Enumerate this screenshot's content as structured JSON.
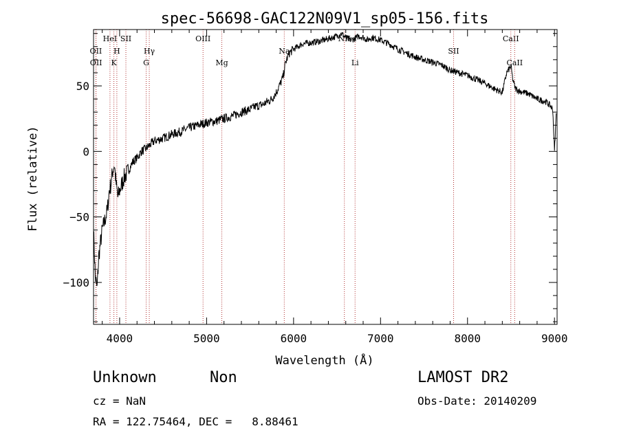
{
  "chart_data": {
    "type": "line",
    "title": "spec-56698-GAC122N09V1_sp05-156.fits",
    "xlabel": "Wavelength (Å)",
    "ylabel": "Flux (relative)",
    "xlim": [
      3700,
      9030
    ],
    "ylim": [
      -132,
      93
    ],
    "x_ticks": [
      4000,
      5000,
      6000,
      7000,
      8000,
      9000
    ],
    "y_ticks": [
      -100,
      -50,
      0,
      50
    ],
    "x_tick_labels": [
      "4000",
      "5000",
      "6000",
      "7000",
      "8000",
      "9000"
    ],
    "y_tick_labels": [
      "−100",
      "−50",
      "0",
      "50"
    ],
    "grid": false,
    "line_color": "#000000",
    "marker_color": "#b03030",
    "spectrum": {
      "x": [
        3700,
        3720,
        3740,
        3760,
        3780,
        3800,
        3820,
        3840,
        3860,
        3880,
        3900,
        3920,
        3940,
        3960,
        3980,
        4000,
        4050,
        4100,
        4150,
        4200,
        4250,
        4300,
        4350,
        4400,
        4500,
        4600,
        4700,
        4800,
        4900,
        5000,
        5100,
        5200,
        5300,
        5400,
        5500,
        5550,
        5600,
        5650,
        5700,
        5750,
        5800,
        5850,
        5880,
        5900,
        5920,
        5950,
        6000,
        6050,
        6100,
        6200,
        6300,
        6400,
        6500,
        6550,
        6600,
        6650,
        6700,
        6750,
        6800,
        6850,
        6900,
        7000,
        7100,
        7200,
        7300,
        7400,
        7500,
        7600,
        7700,
        7800,
        7900,
        8000,
        8100,
        8200,
        8300,
        8400,
        8450,
        8500,
        8520,
        8550,
        8600,
        8700,
        8800,
        8900,
        8950,
        8980,
        9000,
        9020
      ],
      "y": [
        -60,
        -95,
        -105,
        -80,
        -70,
        -60,
        -55,
        -50,
        -45,
        -30,
        -25,
        -15,
        -10,
        -25,
        -35,
        -30,
        -20,
        -15,
        -8,
        -5,
        0,
        2,
        5,
        8,
        10,
        13,
        15,
        18,
        20,
        22,
        23,
        25,
        27,
        30,
        32,
        34,
        35,
        36,
        38,
        40,
        45,
        52,
        57,
        65,
        70,
        75,
        78,
        80,
        82,
        83,
        84,
        86,
        88,
        90,
        87,
        85,
        86,
        88,
        87,
        85,
        87,
        85,
        82,
        78,
        75,
        72,
        70,
        68,
        66,
        62,
        60,
        58,
        55,
        52,
        48,
        45,
        60,
        65,
        55,
        48,
        46,
        44,
        40,
        38,
        35,
        32,
        0,
        28
      ]
    },
    "spectral_lines": [
      {
        "name": "OII",
        "x": 3727,
        "label_row": 1
      },
      {
        "name": "OII",
        "x": 3729,
        "label_row": 2
      },
      {
        "name": "HeI",
        "x": 3889,
        "label_row": 0
      },
      {
        "name": "H",
        "x": 3968,
        "label_row": 1
      },
      {
        "name": "K",
        "x": 3934,
        "label_row": 2
      },
      {
        "name": "SII",
        "x": 4072,
        "label_row": 0
      },
      {
        "name": "Hγ",
        "x": 4341,
        "label_row": 1
      },
      {
        "name": "G",
        "x": 4305,
        "label_row": 2
      },
      {
        "name": "OIII",
        "x": 4959,
        "label_row": 0
      },
      {
        "name": "Mg",
        "x": 5175,
        "label_row": 2
      },
      {
        "name": "Na",
        "x": 5893,
        "label_row": 1
      },
      {
        "name": "NII",
        "x": 6584,
        "label_row": 0
      },
      {
        "name": "Li",
        "x": 6707,
        "label_row": 2
      },
      {
        "name": "SII",
        "x": 7840,
        "label_row": 1
      },
      {
        "name": "CaII",
        "x": 8498,
        "label_row": 0
      },
      {
        "name": "CaII",
        "x": 8542,
        "label_row": 2
      }
    ]
  },
  "footer": {
    "object_class": "Unknown",
    "subclass": "Non",
    "survey": "LAMOST DR2",
    "cz": "cz = NaN",
    "obs_date": "Obs-Date: 20140209",
    "coords": "RA = 122.75464, DEC =   8.88461"
  }
}
